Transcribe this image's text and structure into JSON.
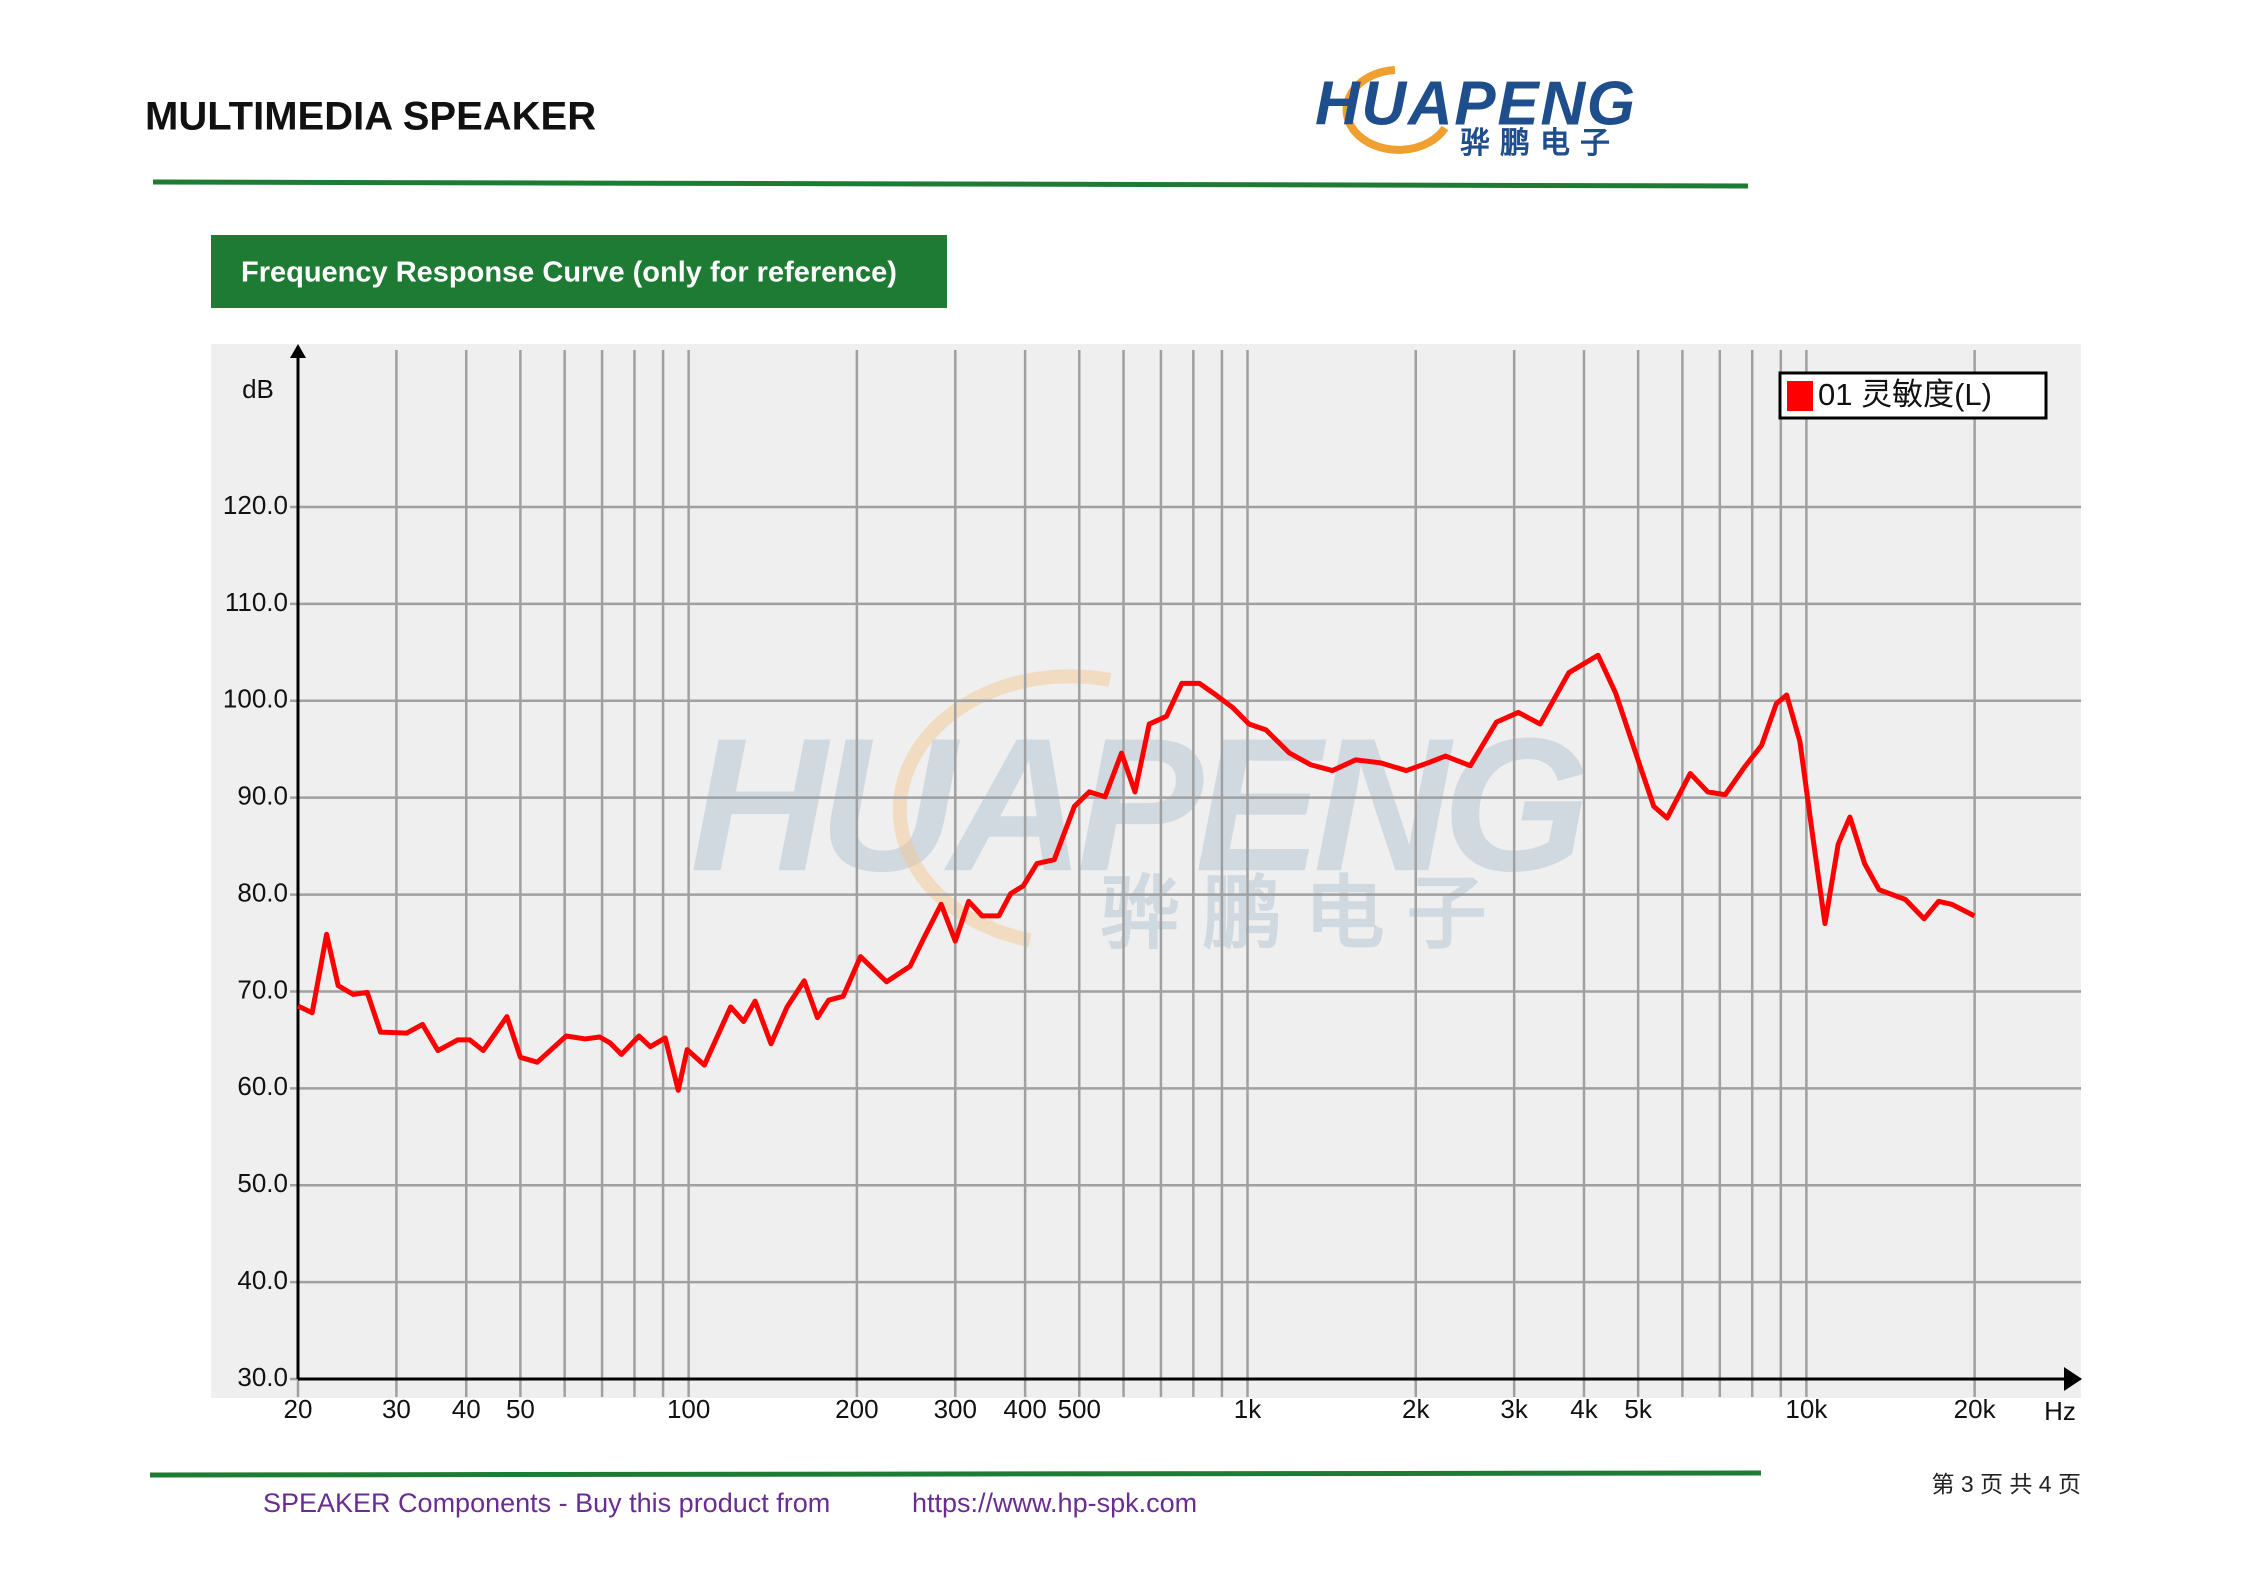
{
  "header": {
    "title": "MULTIMEDIA SPEAKER",
    "logo": "HUAPENG",
    "logo_sub": "骅鹏电子"
  },
  "section_title": "Frequency Response Curve (only for reference)",
  "chart_data": {
    "type": "line",
    "y_label": "dB",
    "x_label": "Hz",
    "x_scale": "log",
    "grid": true,
    "legend": "top-right",
    "watermark": "HUAPENG",
    "watermark_sub": "骅 鹏 电 子",
    "xlim": [
      20,
      31000
    ],
    "ylim": [
      30,
      136
    ],
    "xticks": [
      20,
      30,
      40,
      50,
      100,
      200,
      300,
      400,
      500,
      {
        "value": 1000,
        "label": "1k"
      },
      {
        "value": 2000,
        "label": "2k"
      },
      {
        "value": 3000,
        "label": "3k"
      },
      {
        "value": 4000,
        "label": "4k"
      },
      {
        "value": 5000,
        "label": "5k"
      },
      {
        "value": 10000,
        "label": "10k"
      },
      {
        "value": 20000,
        "label": "20k"
      }
    ],
    "xgrid_minor": [
      60,
      70,
      80,
      90,
      600,
      700,
      800,
      900,
      6000,
      7000,
      8000,
      9000
    ],
    "yticks": [
      {
        "value": 30,
        "label": "30.0"
      },
      {
        "value": 40,
        "label": "40.0"
      },
      {
        "value": 50,
        "label": "50.0"
      },
      {
        "value": 60,
        "label": "60.0"
      },
      {
        "value": 70,
        "label": "70.0"
      },
      {
        "value": 80,
        "label": "80.0"
      },
      {
        "value": 90,
        "label": "90.0"
      },
      {
        "value": 100,
        "label": "100.0"
      },
      {
        "value": 110,
        "label": "110.0"
      },
      {
        "value": 120,
        "label": "120.0"
      }
    ],
    "x": [
      20,
      21.2,
      22.5,
      23.6,
      25.1,
      26.6,
      28.1,
      31.3,
      33.4,
      35.6,
      38.6,
      40.6,
      42.9,
      47.3,
      50,
      53.6,
      60.4,
      65.3,
      69.3,
      72.3,
      75.8,
      81.5,
      85.4,
      90.8,
      95.8,
      99.4,
      106.7,
      118.9,
      125.4,
      131.5,
      140.4,
      150,
      161,
      170,
      178,
      189,
      203,
      226,
      249,
      264,
      283,
      300,
      317,
      335,
      359,
      377,
      397,
      420,
      451,
      490,
      521,
      556,
      595,
      629,
      667,
      716,
      763,
      820,
      878,
      941,
      1006,
      1079,
      1189,
      1297,
      1419,
      1561,
      1729,
      1924,
      2105,
      2261,
      2504,
      2788,
      3052,
      3339,
      3758,
      4238,
      4557,
      5017,
      5333,
      5634,
      6197,
      6659,
      7155,
      7736,
      8313,
      8835,
      9219,
      9736,
      10288,
      10796,
      11400,
      11963,
      12710,
      13490,
      15030,
      16240,
      17240,
      18190,
      19980
    ],
    "series": [
      {
        "name": "01 灵敏度(L)",
        "color": "#ff0000",
        "values": [
          68.5,
          67.8,
          75.9,
          70.6,
          69.7,
          69.9,
          65.8,
          65.7,
          66.6,
          63.9,
          65,
          65,
          63.9,
          67.4,
          63.2,
          62.7,
          65.4,
          65.1,
          65.3,
          64.7,
          63.5,
          65.4,
          64.3,
          65.2,
          59.8,
          64,
          62.4,
          68.4,
          66.9,
          69,
          64.6,
          68.4,
          71.1,
          67.3,
          69.1,
          69.5,
          73.6,
          71,
          72.6,
          75.6,
          79,
          75.2,
          79.3,
          77.8,
          77.8,
          80.1,
          80.9,
          83.2,
          83.6,
          89.1,
          90.6,
          90.1,
          94.6,
          90.6,
          97.6,
          98.4,
          101.8,
          101.8,
          100.6,
          99.3,
          97.6,
          97,
          94.6,
          93.4,
          92.8,
          93.9,
          93.6,
          92.8,
          93.6,
          94.3,
          93.3,
          97.8,
          98.8,
          97.6,
          102.9,
          104.7,
          100.8,
          93.6,
          89.1,
          87.9,
          92.5,
          90.6,
          90.3,
          93.1,
          95.4,
          99.7,
          100.6,
          95.8,
          85.6,
          77,
          85.2,
          88,
          83.2,
          80.5,
          79.5,
          77.5,
          79.3,
          79,
          77.8
        ]
      }
    ]
  },
  "footer": {
    "text": "SPEAKER Components - Buy this product from",
    "url": "https://www.hp-spk.com",
    "page": "第 3 页 共 4 页"
  }
}
